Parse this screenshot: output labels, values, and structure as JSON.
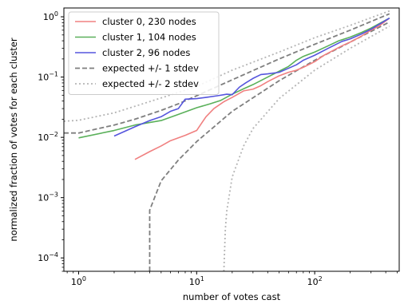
{
  "chart_data": {
    "type": "line",
    "xlabel": "number of votes cast",
    "ylabel": "normalized fraction of votes for each cluster",
    "xscale": "log",
    "yscale": "log",
    "xlim": [
      0.75,
      520
    ],
    "ylim": [
      6e-05,
      1.4
    ],
    "x_ticks": [
      {
        "value": 1,
        "base": "10",
        "exp": "0"
      },
      {
        "value": 10,
        "base": "10",
        "exp": "1"
      },
      {
        "value": 100,
        "base": "10",
        "exp": "2"
      }
    ],
    "y_ticks": [
      {
        "value": 0.0001,
        "base": "10",
        "exp": "−4"
      },
      {
        "value": 0.001,
        "base": "10",
        "exp": "−3"
      },
      {
        "value": 0.01,
        "base": "10",
        "exp": "−2"
      },
      {
        "value": 0.1,
        "base": "10",
        "exp": "−1"
      },
      {
        "value": 1,
        "base": "10",
        "exp": "0"
      }
    ],
    "legend_position": "top-left",
    "series": [
      {
        "name": "cluster 0, 230 nodes",
        "color": "#f08080",
        "style": "solid",
        "points": [
          [
            3,
            0.0043
          ],
          [
            4,
            0.0058
          ],
          [
            5,
            0.0072
          ],
          [
            6,
            0.0088
          ],
          [
            8,
            0.0108
          ],
          [
            10,
            0.013
          ],
          [
            12,
            0.022
          ],
          [
            14,
            0.03
          ],
          [
            17,
            0.039
          ],
          [
            20,
            0.046
          ],
          [
            25,
            0.059
          ],
          [
            30,
            0.063
          ],
          [
            35,
            0.072
          ],
          [
            40,
            0.084
          ],
          [
            50,
            0.105
          ],
          [
            60,
            0.12
          ],
          [
            70,
            0.13
          ],
          [
            80,
            0.145
          ],
          [
            100,
            0.18
          ],
          [
            120,
            0.23
          ],
          [
            150,
            0.29
          ],
          [
            170,
            0.33
          ],
          [
            200,
            0.38
          ],
          [
            250,
            0.48
          ],
          [
            300,
            0.6
          ],
          [
            350,
            0.7
          ],
          [
            430,
            0.95
          ]
        ]
      },
      {
        "name": "cluster 1, 104 nodes",
        "color": "#5ab05a",
        "style": "solid",
        "points": [
          [
            1,
            0.0098
          ],
          [
            2,
            0.013
          ],
          [
            3,
            0.016
          ],
          [
            5,
            0.019
          ],
          [
            7,
            0.024
          ],
          [
            10,
            0.031
          ],
          [
            13,
            0.036
          ],
          [
            16,
            0.041
          ],
          [
            20,
            0.052
          ],
          [
            25,
            0.064
          ],
          [
            30,
            0.075
          ],
          [
            40,
            0.1
          ],
          [
            50,
            0.125
          ],
          [
            60,
            0.15
          ],
          [
            70,
            0.19
          ],
          [
            80,
            0.22
          ],
          [
            100,
            0.26
          ],
          [
            130,
            0.33
          ],
          [
            160,
            0.4
          ],
          [
            200,
            0.46
          ],
          [
            250,
            0.55
          ],
          [
            300,
            0.65
          ],
          [
            430,
            0.95
          ]
        ]
      },
      {
        "name": "cluster 2, 96 nodes",
        "color": "#5555dd",
        "style": "solid",
        "points": [
          [
            2,
            0.0105
          ],
          [
            3,
            0.015
          ],
          [
            4,
            0.019
          ],
          [
            5,
            0.022
          ],
          [
            6,
            0.027
          ],
          [
            7,
            0.03
          ],
          [
            8,
            0.043
          ],
          [
            10,
            0.044
          ],
          [
            12,
            0.046
          ],
          [
            15,
            0.049
          ],
          [
            18,
            0.052
          ],
          [
            20,
            0.051
          ],
          [
            23,
            0.068
          ],
          [
            26,
            0.08
          ],
          [
            30,
            0.095
          ],
          [
            35,
            0.11
          ],
          [
            40,
            0.113
          ],
          [
            50,
            0.12
          ],
          [
            60,
            0.14
          ],
          [
            70,
            0.16
          ],
          [
            80,
            0.19
          ],
          [
            100,
            0.23
          ],
          [
            130,
            0.3
          ],
          [
            170,
            0.39
          ],
          [
            200,
            0.43
          ],
          [
            250,
            0.52
          ],
          [
            300,
            0.62
          ],
          [
            430,
            0.95
          ]
        ]
      },
      {
        "name": "expected +/- 1 stdev",
        "color": "#7f7f7f",
        "style": "dashed",
        "points": [
          [
            0.75,
            0.0118
          ],
          [
            1,
            0.0118
          ],
          [
            2,
            0.016
          ],
          [
            3,
            0.02
          ],
          [
            5,
            0.028
          ],
          [
            7,
            0.036
          ],
          [
            10,
            0.049
          ],
          [
            20,
            0.09
          ],
          [
            50,
            0.2
          ],
          [
            100,
            0.35
          ],
          [
            200,
            0.6
          ],
          [
            430,
            1.12
          ]
        ],
        "lower_points": [
          [
            4,
            6e-05
          ],
          [
            4,
            0.00062
          ],
          [
            5,
            0.0019
          ],
          [
            7,
            0.0042
          ],
          [
            10,
            0.0085
          ],
          [
            20,
            0.027
          ],
          [
            50,
            0.087
          ],
          [
            100,
            0.19
          ],
          [
            200,
            0.38
          ],
          [
            430,
            0.82
          ]
        ]
      },
      {
        "name": "expected +/- 2 stdev",
        "color": "#b5b5b5",
        "style": "dotted",
        "points": [
          [
            0.75,
            0.0185
          ],
          [
            1,
            0.0192
          ],
          [
            2,
            0.0255
          ],
          [
            5,
            0.045
          ],
          [
            10,
            0.07
          ],
          [
            20,
            0.13
          ],
          [
            50,
            0.26
          ],
          [
            100,
            0.45
          ],
          [
            200,
            0.72
          ],
          [
            430,
            1.25
          ]
        ],
        "lower_points": [
          [
            17,
            6e-05
          ],
          [
            17.5,
            0.0003
          ],
          [
            18,
            0.0006
          ],
          [
            20,
            0.0022
          ],
          [
            25,
            0.0072
          ],
          [
            30,
            0.014
          ],
          [
            50,
            0.044
          ],
          [
            100,
            0.13
          ],
          [
            200,
            0.3
          ],
          [
            430,
            0.7
          ]
        ]
      }
    ]
  }
}
